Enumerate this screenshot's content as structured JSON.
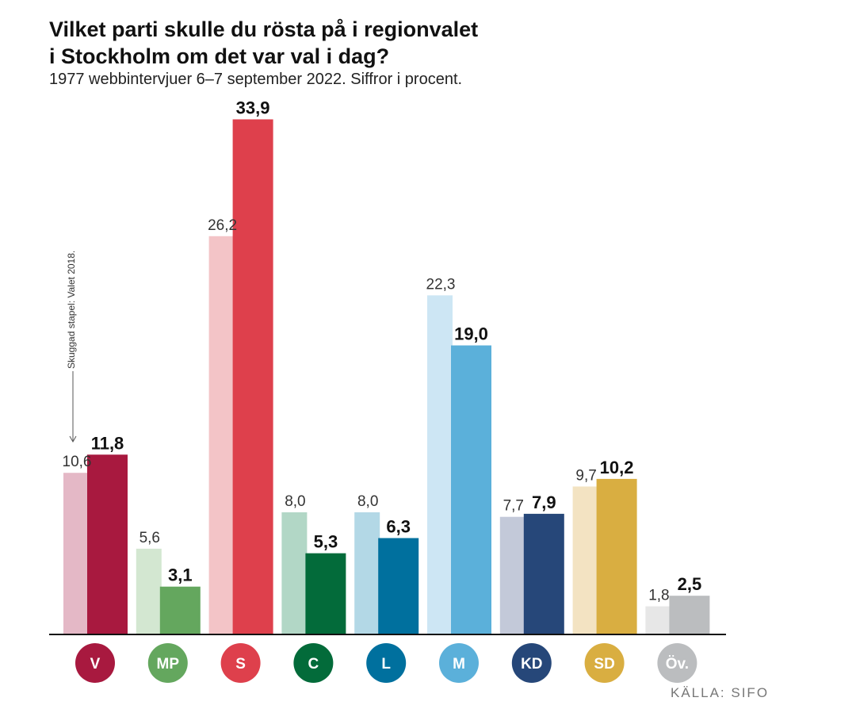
{
  "title_line1": "Vilket parti skulle du rösta på i regionvalet",
  "title_line2": "i Stockholm om det var val i dag?",
  "subtitle": "1977 webbintervjuer 6–7 september 2022. Siffror i procent.",
  "note": "Skuggad stapel: Valet 2018.",
  "source": "KÄLLA: SIFO",
  "chart_data": {
    "type": "bar",
    "title": "Vilket parti skulle du rösta på i regionvalet i Stockholm om det var val i dag?",
    "categories": [
      "V",
      "MP",
      "S",
      "C",
      "L",
      "M",
      "KD",
      "SD",
      "Öv."
    ],
    "series": [
      {
        "name": "Valet 2018",
        "values": [
          10.6,
          5.6,
          26.2,
          8.0,
          8.0,
          22.3,
          7.7,
          9.7,
          1.8
        ],
        "labels": [
          "10,6",
          "5,6",
          "26,2",
          "8,0",
          "8,0",
          "22,3",
          "7,7",
          "9,7",
          "1,8"
        ],
        "colors": [
          "#e4b8c6",
          "#d3e7d1",
          "#f3c4c7",
          "#b2d7c6",
          "#b3d8e6",
          "#cde6f4",
          "#c3c9d9",
          "#f3e3c2",
          "#e7e7e7"
        ]
      },
      {
        "name": "Val i dag",
        "values": [
          11.8,
          3.1,
          33.9,
          5.3,
          6.3,
          19.0,
          7.9,
          10.2,
          2.5
        ],
        "labels": [
          "11,8",
          "3,1",
          "33,9",
          "5,3",
          "6,3",
          "19,0",
          "7,9",
          "10,2",
          "2,5"
        ],
        "colors": [
          "#a8193f",
          "#64a75e",
          "#de404c",
          "#036b3a",
          "#00709e",
          "#5bb0da",
          "#264779",
          "#d9ae41",
          "#bbbdbf"
        ]
      }
    ],
    "party_colors": [
      "#a8193f",
      "#64a75e",
      "#de404c",
      "#036b3a",
      "#00709e",
      "#5bb0da",
      "#264779",
      "#d9ae41",
      "#bbbdbf"
    ],
    "ylim": [
      0,
      35
    ],
    "xlabel": "",
    "ylabel": "",
    "grid": false,
    "legend": "none"
  }
}
